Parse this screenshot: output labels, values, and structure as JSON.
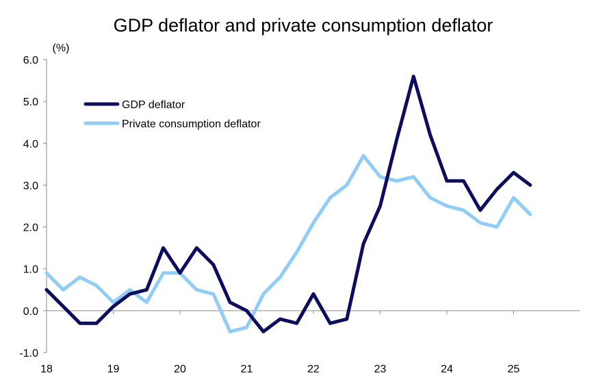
{
  "chart_data": {
    "type": "line",
    "title": "GDP deflator and private consumption deflator",
    "ylabel": "(%)",
    "xlabel": "",
    "ylim": [
      -1.0,
      6.0
    ],
    "y_ticks": [
      "6.0",
      "5.0",
      "4.0",
      "3.0",
      "2.0",
      "1.0",
      "0.0",
      "-1.0"
    ],
    "x_ticks": [
      "18",
      "19",
      "20",
      "21",
      "22",
      "23",
      "24",
      "25"
    ],
    "x": [
      "18Q1",
      "18Q2",
      "18Q3",
      "18Q4",
      "19Q1",
      "19Q2",
      "19Q3",
      "19Q4",
      "20Q1",
      "20Q2",
      "20Q3",
      "20Q4",
      "21Q1",
      "21Q2",
      "21Q3",
      "21Q4",
      "22Q1",
      "22Q2",
      "22Q3",
      "22Q4",
      "23Q1",
      "23Q2",
      "23Q3",
      "23Q4",
      "24Q1",
      "24Q2",
      "24Q3",
      "24Q4",
      "25Q1",
      "25Q2",
      "25Q3",
      "25Q4"
    ],
    "series": [
      {
        "name": "GDP deflator",
        "color": "#0d0d5e",
        "values": [
          0.5,
          0.1,
          -0.3,
          -0.3,
          0.1,
          0.4,
          0.5,
          1.5,
          0.9,
          1.5,
          1.1,
          0.2,
          0.0,
          -0.5,
          -0.2,
          -0.3,
          0.4,
          -0.3,
          -0.2,
          1.6,
          2.5,
          4.1,
          5.6,
          4.2,
          3.1,
          3.1,
          2.4,
          2.9,
          3.3,
          3.0,
          null,
          null
        ]
      },
      {
        "name": "Private consumption deflator",
        "color": "#8fcdf6",
        "values": [
          0.9,
          0.5,
          0.8,
          0.6,
          0.2,
          0.5,
          0.2,
          0.9,
          0.9,
          0.5,
          0.4,
          -0.5,
          -0.4,
          0.4,
          0.8,
          1.4,
          2.1,
          2.7,
          3.0,
          3.7,
          3.2,
          3.1,
          3.2,
          2.7,
          2.5,
          2.4,
          2.1,
          2.0,
          2.7,
          2.3,
          null,
          null
        ]
      }
    ],
    "legend": "top-left",
    "grid": false
  }
}
